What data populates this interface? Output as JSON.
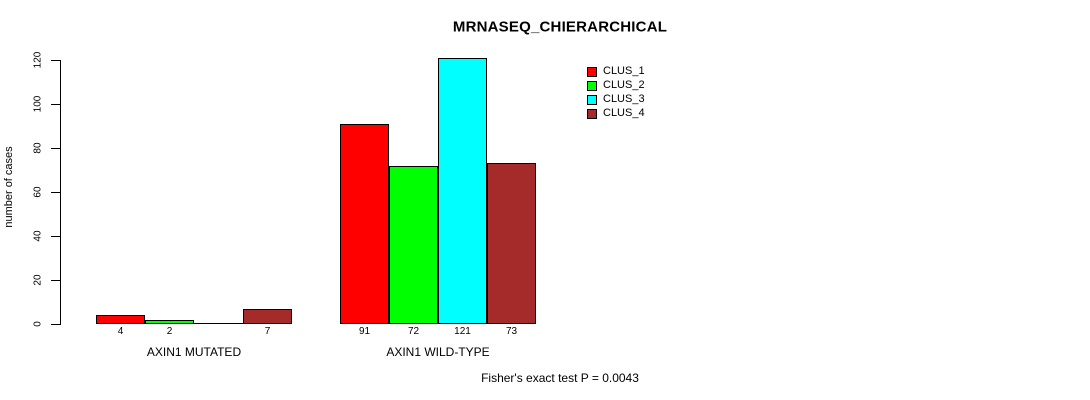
{
  "window": {
    "background": "#FFFFFF"
  },
  "chart_data": {
    "type": "bar",
    "title": "MRNASEQ_CHIERARCHICAL",
    "ylabel": "number of cases",
    "xlabel": "",
    "ylim": [
      0,
      120
    ],
    "y_ticks": [
      0,
      20,
      40,
      60,
      80,
      100,
      120
    ],
    "grid": false,
    "legend_position": "top-right",
    "categories": [
      "AXIN1 MUTATED",
      "AXIN1 WILD-TYPE"
    ],
    "series": [
      {
        "name": "CLUS_1",
        "color": "#FF0000",
        "values": [
          4,
          91
        ]
      },
      {
        "name": "CLUS_2",
        "color": "#00FF00",
        "values": [
          2,
          72
        ]
      },
      {
        "name": "CLUS_3",
        "color": "#00FFFF",
        "values": [
          0,
          121
        ]
      },
      {
        "name": "CLUS_4",
        "color": "#A52A2A",
        "values": [
          7,
          73
        ]
      }
    ],
    "bar_value_labels": [
      [
        "4",
        "2",
        "",
        "7"
      ],
      [
        "91",
        "72",
        "121",
        "73"
      ]
    ],
    "bar_border_color": "#000000",
    "annotation": "Fisher's exact test P = 0.0043"
  }
}
